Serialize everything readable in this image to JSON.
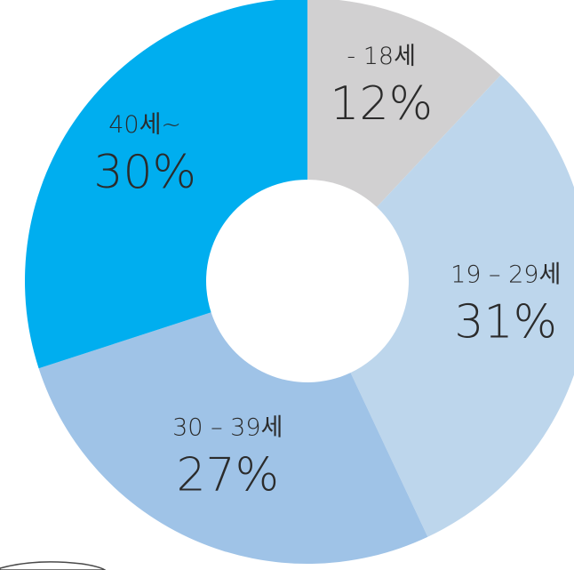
{
  "chart_data": {
    "type": "pie",
    "donut": true,
    "categories": [
      "- 18세",
      "19 – 29세",
      "30 – 39세",
      "40세~"
    ],
    "values": [
      12,
      31,
      27,
      30
    ],
    "value_labels": [
      "12%",
      "31%",
      "27%",
      "30%"
    ],
    "colors": [
      "#d1d0d1",
      "#bdd6ec",
      "#9fc3e7",
      "#00aeef"
    ],
    "start": "top, clockwise",
    "legend": "none"
  }
}
